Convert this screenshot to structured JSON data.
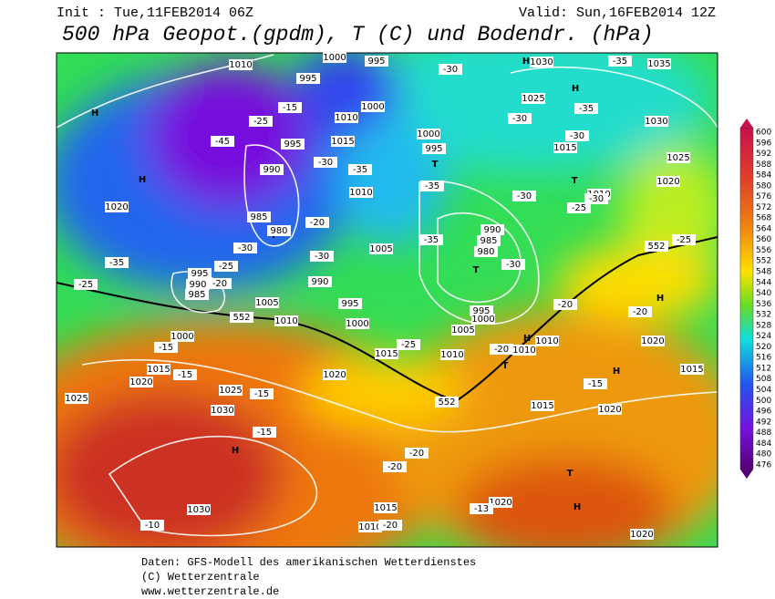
{
  "header": {
    "init": "Init : Tue,11FEB2014 06Z",
    "valid": "Valid: Sun,16FEB2014 12Z",
    "title": "500 hPa Geopot.(gpdm), T (C) und Bodendr. (hPa)"
  },
  "colorbar": {
    "labels": [
      600,
      596,
      592,
      588,
      584,
      580,
      576,
      572,
      568,
      564,
      560,
      556,
      552,
      548,
      544,
      540,
      536,
      532,
      528,
      524,
      520,
      516,
      512,
      508,
      504,
      500,
      496,
      492,
      488,
      484,
      480,
      476
    ]
  },
  "map_labels": [
    "H",
    "H",
    "H",
    "H",
    "H",
    "H",
    "T",
    "T",
    "T",
    "H",
    "H",
    "T",
    "H",
    "H",
    "T",
    "H",
    "T",
    "T",
    1010,
    1000,
    995,
    995,
    1010,
    1000,
    995,
    990,
    1015,
    1010,
    1000,
    995,
    985,
    980,
    1005,
    990,
    995,
    1005,
    1010,
    1000,
    995,
    990,
    985,
    1000,
    1015,
    1020,
    1025,
    1030,
    1025,
    1030,
    1020,
    1015,
    1010,
    995,
    1000,
    990,
    985,
    980,
    1005,
    1010,
    1010,
    1015,
    1020,
    1020,
    1015,
    1020,
    1015,
    1010,
    1020,
    1030,
    1035,
    1025,
    1030,
    1015,
    1025,
    1020,
    1010,
    1020,
    552,
    552,
    552,
    -30,
    -35,
    -30,
    -30,
    -35,
    -15,
    -25,
    -45,
    -30,
    -35,
    -35,
    -30,
    -30,
    -25,
    -20,
    -30,
    -30,
    -35,
    -30,
    -35,
    -25,
    -20,
    -25,
    -20,
    -20,
    -15,
    -15,
    -15,
    -15,
    -20,
    -20,
    -13,
    -10,
    -20,
    -15,
    -20,
    -25,
    -25
  ],
  "footer": {
    "source": "Daten: GFS-Modell des amerikanischen Wetterdienstes",
    "copyright": "(C) Wetterzentrale",
    "url": "www.wetterzentrale.de"
  }
}
